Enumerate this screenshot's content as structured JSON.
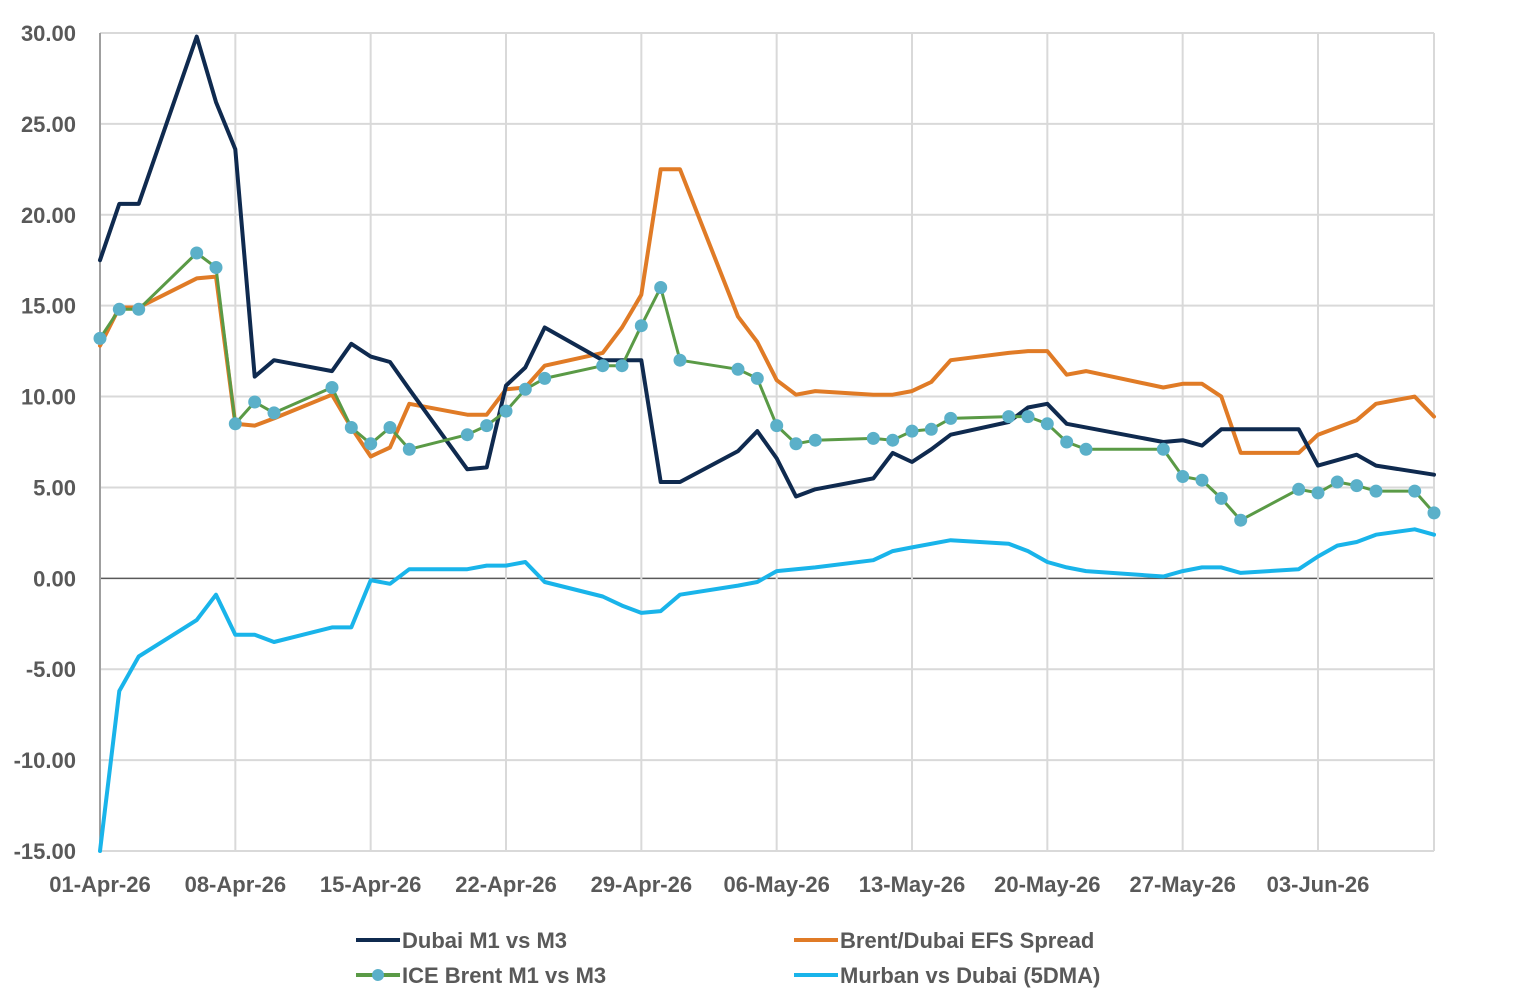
{
  "chart_data": {
    "type": "line",
    "title": "",
    "xlabel": "",
    "ylabel": "",
    "ylim": [
      -15,
      30
    ],
    "y_ticks": [
      "30.00",
      "25.00",
      "20.00",
      "15.00",
      "10.00",
      "5.00",
      "0.00",
      "-5.00",
      "-10.00",
      "-15.00"
    ],
    "x_tick_labels": [
      "01-Apr-26",
      "08-Apr-26",
      "15-Apr-26",
      "22-Apr-26",
      "29-Apr-26",
      "06-May-26",
      "13-May-26",
      "20-May-26",
      "27-May-26",
      "03-Jun-26"
    ],
    "x_range": [
      "2026-04-01",
      "2026-06-09"
    ],
    "grid": "vertical-and-horizontal",
    "legend_position": "bottom",
    "series": [
      {
        "name": "Dubai M1 vs M3",
        "color": "#0f2a4f",
        "markers": false,
        "points": [
          [
            "2026-04-01",
            17.5
          ],
          [
            "2026-04-02",
            20.6
          ],
          [
            "2026-04-03",
            20.6
          ],
          [
            "2026-04-06",
            29.8
          ],
          [
            "2026-04-07",
            26.2
          ],
          [
            "2026-04-08",
            23.6
          ],
          [
            "2026-04-09",
            11.1
          ],
          [
            "2026-04-10",
            12.0
          ],
          [
            "2026-04-13",
            11.4
          ],
          [
            "2026-04-14",
            12.9
          ],
          [
            "2026-04-15",
            12.2
          ],
          [
            "2026-04-16",
            11.9
          ],
          [
            "2026-04-17",
            10.4
          ],
          [
            "2026-04-20",
            6.0
          ],
          [
            "2026-04-21",
            6.1
          ],
          [
            "2026-04-22",
            10.6
          ],
          [
            "2026-04-23",
            11.6
          ],
          [
            "2026-04-24",
            13.8
          ],
          [
            "2026-04-27",
            12.0
          ],
          [
            "2026-04-28",
            12.0
          ],
          [
            "2026-04-29",
            12.0
          ],
          [
            "2026-04-30",
            5.3
          ],
          [
            "2026-05-01",
            5.3
          ],
          [
            "2026-05-04",
            7.0
          ],
          [
            "2026-05-05",
            8.1
          ],
          [
            "2026-05-06",
            6.6
          ],
          [
            "2026-05-07",
            4.5
          ],
          [
            "2026-05-08",
            4.9
          ],
          [
            "2026-05-11",
            5.5
          ],
          [
            "2026-05-12",
            6.9
          ],
          [
            "2026-05-13",
            6.4
          ],
          [
            "2026-05-14",
            7.1
          ],
          [
            "2026-05-15",
            7.9
          ],
          [
            "2026-05-18",
            8.6
          ],
          [
            "2026-05-19",
            9.4
          ],
          [
            "2026-05-20",
            9.6
          ],
          [
            "2026-05-21",
            8.5
          ],
          [
            "2026-05-26",
            7.5
          ],
          [
            "2026-05-27",
            7.6
          ],
          [
            "2026-05-28",
            7.3
          ],
          [
            "2026-05-29",
            8.2
          ],
          [
            "2026-06-01",
            8.2
          ],
          [
            "2026-06-02",
            8.2
          ],
          [
            "2026-06-03",
            6.2
          ],
          [
            "2026-06-05",
            6.8
          ],
          [
            "2026-06-06",
            6.2
          ],
          [
            "2026-06-09",
            5.7
          ]
        ]
      },
      {
        "name": "Brent/Dubai EFS Spread",
        "color": "#e07b26",
        "markers": false,
        "points": [
          [
            "2026-04-01",
            12.8
          ],
          [
            "2026-04-02",
            14.9
          ],
          [
            "2026-04-03",
            14.9
          ],
          [
            "2026-04-06",
            16.5
          ],
          [
            "2026-04-07",
            16.6
          ],
          [
            "2026-04-08",
            8.5
          ],
          [
            "2026-04-09",
            8.4
          ],
          [
            "2026-04-10",
            8.8
          ],
          [
            "2026-04-13",
            10.1
          ],
          [
            "2026-04-14",
            8.3
          ],
          [
            "2026-04-15",
            6.7
          ],
          [
            "2026-04-16",
            7.2
          ],
          [
            "2026-04-17",
            9.6
          ],
          [
            "2026-04-20",
            9.0
          ],
          [
            "2026-04-21",
            9.0
          ],
          [
            "2026-04-22",
            10.4
          ],
          [
            "2026-04-23",
            10.5
          ],
          [
            "2026-04-24",
            11.7
          ],
          [
            "2026-04-27",
            12.4
          ],
          [
            "2026-04-28",
            13.8
          ],
          [
            "2026-04-29",
            15.6
          ],
          [
            "2026-04-30",
            22.5
          ],
          [
            "2026-05-01",
            22.5
          ],
          [
            "2026-05-04",
            14.4
          ],
          [
            "2026-05-05",
            13.0
          ],
          [
            "2026-05-06",
            10.9
          ],
          [
            "2026-05-07",
            10.1
          ],
          [
            "2026-05-08",
            10.3
          ],
          [
            "2026-05-11",
            10.1
          ],
          [
            "2026-05-12",
            10.1
          ],
          [
            "2026-05-13",
            10.3
          ],
          [
            "2026-05-14",
            10.8
          ],
          [
            "2026-05-15",
            12.0
          ],
          [
            "2026-05-18",
            12.4
          ],
          [
            "2026-05-19",
            12.5
          ],
          [
            "2026-05-20",
            12.5
          ],
          [
            "2026-05-21",
            11.2
          ],
          [
            "2026-05-22",
            11.4
          ],
          [
            "2026-05-26",
            10.5
          ],
          [
            "2026-05-27",
            10.7
          ],
          [
            "2026-05-28",
            10.7
          ],
          [
            "2026-05-29",
            10.0
          ],
          [
            "2026-05-30",
            6.9
          ],
          [
            "2026-06-01",
            6.9
          ],
          [
            "2026-06-02",
            6.9
          ],
          [
            "2026-06-03",
            7.9
          ],
          [
            "2026-06-04",
            8.3
          ],
          [
            "2026-06-05",
            8.7
          ],
          [
            "2026-06-06",
            9.6
          ],
          [
            "2026-06-08",
            10.0
          ],
          [
            "2026-06-09",
            8.9
          ]
        ]
      },
      {
        "name": "ICE Brent M1 vs M3",
        "color": "#5a9a46",
        "marker_color": "#5bb0c9",
        "markers": true,
        "points": [
          [
            "2026-04-01",
            13.2
          ],
          [
            "2026-04-02",
            14.8
          ],
          [
            "2026-04-03",
            14.8
          ],
          [
            "2026-04-06",
            17.9
          ],
          [
            "2026-04-07",
            17.1
          ],
          [
            "2026-04-08",
            8.5
          ],
          [
            "2026-04-09",
            9.7
          ],
          [
            "2026-04-10",
            9.1
          ],
          [
            "2026-04-13",
            10.5
          ],
          [
            "2026-04-14",
            8.3
          ],
          [
            "2026-04-15",
            7.4
          ],
          [
            "2026-04-16",
            8.3
          ],
          [
            "2026-04-17",
            7.1
          ],
          [
            "2026-04-20",
            7.9
          ],
          [
            "2026-04-21",
            8.4
          ],
          [
            "2026-04-22",
            9.2
          ],
          [
            "2026-04-23",
            10.4
          ],
          [
            "2026-04-24",
            11.0
          ],
          [
            "2026-04-27",
            11.7
          ],
          [
            "2026-04-28",
            11.7
          ],
          [
            "2026-04-29",
            13.9
          ],
          [
            "2026-04-30",
            16.0
          ],
          [
            "2026-05-01",
            12.0
          ],
          [
            "2026-05-04",
            11.5
          ],
          [
            "2026-05-05",
            11.0
          ],
          [
            "2026-05-06",
            8.4
          ],
          [
            "2026-05-07",
            7.4
          ],
          [
            "2026-05-08",
            7.6
          ],
          [
            "2026-05-11",
            7.7
          ],
          [
            "2026-05-12",
            7.6
          ],
          [
            "2026-05-13",
            8.1
          ],
          [
            "2026-05-14",
            8.2
          ],
          [
            "2026-05-15",
            8.8
          ],
          [
            "2026-05-18",
            8.9
          ],
          [
            "2026-05-19",
            8.9
          ],
          [
            "2026-05-20",
            8.5
          ],
          [
            "2026-05-21",
            7.5
          ],
          [
            "2026-05-22",
            7.1
          ],
          [
            "2026-05-26",
            7.1
          ],
          [
            "2026-05-27",
            5.6
          ],
          [
            "2026-05-28",
            5.4
          ],
          [
            "2026-05-29",
            4.4
          ],
          [
            "2026-05-30",
            3.2
          ],
          [
            "2026-06-02",
            4.9
          ],
          [
            "2026-06-03",
            4.7
          ],
          [
            "2026-06-04",
            5.3
          ],
          [
            "2026-06-05",
            5.1
          ],
          [
            "2026-06-06",
            4.8
          ],
          [
            "2026-06-08",
            4.8
          ],
          [
            "2026-06-09",
            3.6
          ]
        ]
      },
      {
        "name": "Murban vs Dubai (5DMA)",
        "color": "#19b4ea",
        "markers": false,
        "points": [
          [
            "2026-04-01",
            -15.0
          ],
          [
            "2026-04-02",
            -6.2
          ],
          [
            "2026-04-03",
            -4.3
          ],
          [
            "2026-04-06",
            -2.3
          ],
          [
            "2026-04-07",
            -0.9
          ],
          [
            "2026-04-08",
            -3.1
          ],
          [
            "2026-04-09",
            -3.1
          ],
          [
            "2026-04-10",
            -3.5
          ],
          [
            "2026-04-13",
            -2.7
          ],
          [
            "2026-04-14",
            -2.7
          ],
          [
            "2026-04-15",
            -0.1
          ],
          [
            "2026-04-16",
            -0.3
          ],
          [
            "2026-04-17",
            0.5
          ],
          [
            "2026-04-20",
            0.5
          ],
          [
            "2026-04-21",
            0.7
          ],
          [
            "2026-04-22",
            0.7
          ],
          [
            "2026-04-23",
            0.9
          ],
          [
            "2026-04-24",
            -0.2
          ],
          [
            "2026-04-27",
            -1.0
          ],
          [
            "2026-04-28",
            -1.5
          ],
          [
            "2026-04-29",
            -1.9
          ],
          [
            "2026-04-30",
            -1.8
          ],
          [
            "2026-05-01",
            -0.9
          ],
          [
            "2026-05-04",
            -0.4
          ],
          [
            "2026-05-05",
            -0.2
          ],
          [
            "2026-05-06",
            0.4
          ],
          [
            "2026-05-08",
            0.6
          ],
          [
            "2026-05-11",
            1.0
          ],
          [
            "2026-05-12",
            1.5
          ],
          [
            "2026-05-13",
            1.7
          ],
          [
            "2026-05-15",
            2.1
          ],
          [
            "2026-05-18",
            1.9
          ],
          [
            "2026-05-19",
            1.5
          ],
          [
            "2026-05-20",
            0.9
          ],
          [
            "2026-05-21",
            0.6
          ],
          [
            "2026-05-22",
            0.4
          ],
          [
            "2026-05-26",
            0.1
          ],
          [
            "2026-05-27",
            0.4
          ],
          [
            "2026-05-28",
            0.6
          ],
          [
            "2026-05-29",
            0.6
          ],
          [
            "2026-05-30",
            0.3
          ],
          [
            "2026-06-02",
            0.5
          ],
          [
            "2026-06-03",
            1.2
          ],
          [
            "2026-06-04",
            1.8
          ],
          [
            "2026-06-05",
            2.0
          ],
          [
            "2026-06-06",
            2.4
          ],
          [
            "2026-06-08",
            2.7
          ],
          [
            "2026-06-09",
            2.4
          ]
        ]
      }
    ]
  }
}
